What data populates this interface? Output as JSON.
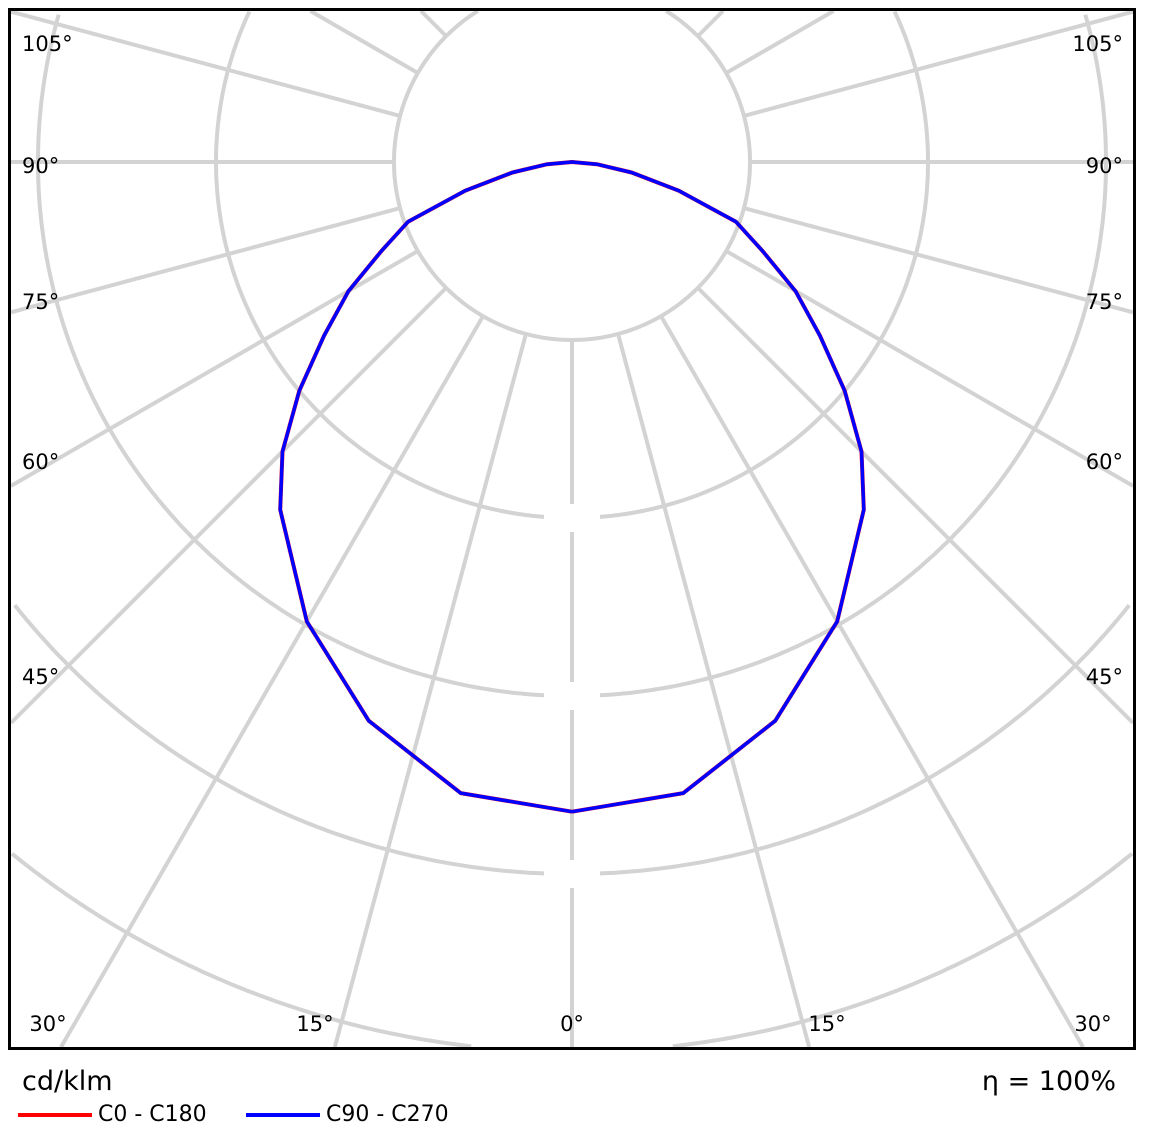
{
  "chart_data": {
    "type": "polar",
    "unit_label": "cd/klm",
    "efficiency_label": "η = 100%",
    "angle_labels": {
      "left": [
        "105°",
        "90°",
        "75°",
        "60°",
        "45°"
      ],
      "right": [
        "105°",
        "90°",
        "75°",
        "60°",
        "45°"
      ],
      "bottom": [
        "30°",
        "15°",
        "0°",
        "15°",
        "30°"
      ]
    },
    "angle_grid_step_deg": 15,
    "radial_rings": 6,
    "grid": true,
    "legend_position": "bottom-left",
    "angles_deg": [
      0,
      10,
      20,
      30,
      40,
      45,
      50,
      55,
      60,
      65,
      70,
      75,
      80,
      85,
      90
    ],
    "series": [
      {
        "name": "C0 - C180",
        "color": "#ff0000",
        "values": [
          3.65,
          3.6,
          3.34,
          2.98,
          2.55,
          2.3,
          2.0,
          1.7,
          1.45,
          1.18,
          0.98,
          0.62,
          0.34,
          0.14,
          0
        ]
      },
      {
        "name": "C90 - C270",
        "color": "#0000ff",
        "values": [
          3.65,
          3.6,
          3.34,
          2.98,
          2.55,
          2.3,
          2.0,
          1.7,
          1.45,
          1.18,
          0.98,
          0.62,
          0.34,
          0.14,
          0
        ]
      }
    ]
  }
}
